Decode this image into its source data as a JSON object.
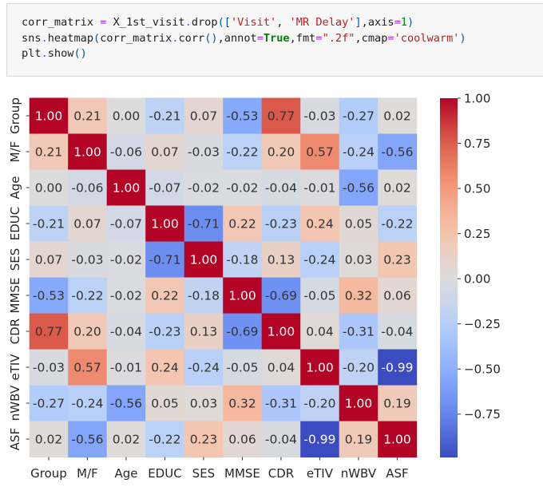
{
  "code_cell": {
    "lines": [
      [
        [
          "t",
          "corr_matrix "
        ],
        [
          "o",
          "="
        ],
        [
          "t",
          " X_1st_visit"
        ],
        [
          "o",
          "."
        ],
        [
          "t",
          "drop"
        ],
        [
          "p",
          "(["
        ],
        [
          "s",
          "'Visit'"
        ],
        [
          "t",
          ", "
        ],
        [
          "s",
          "'MR Delay'"
        ],
        [
          "p",
          "]"
        ],
        [
          "t",
          ",axis"
        ],
        [
          "o",
          "="
        ],
        [
          "n",
          "1"
        ],
        [
          "p",
          ")"
        ]
      ],
      [
        [
          "t",
          "sns"
        ],
        [
          "o",
          "."
        ],
        [
          "t",
          "heatmap"
        ],
        [
          "p",
          "("
        ],
        [
          "t",
          "corr_matrix"
        ],
        [
          "o",
          "."
        ],
        [
          "t",
          "corr"
        ],
        [
          "p",
          "()"
        ],
        [
          "t",
          ",annot"
        ],
        [
          "o",
          "="
        ],
        [
          "k",
          "True"
        ],
        [
          "t",
          ",fmt"
        ],
        [
          "o",
          "="
        ],
        [
          "s",
          "\".2f\""
        ],
        [
          "t",
          ",cmap"
        ],
        [
          "o",
          "="
        ],
        [
          "s",
          "'coolwarm'"
        ],
        [
          "p",
          ")"
        ]
      ],
      [
        [
          "t",
          "plt"
        ],
        [
          "o",
          "."
        ],
        [
          "t",
          "show"
        ],
        [
          "p",
          "()"
        ]
      ]
    ]
  },
  "chart_data": {
    "type": "heatmap",
    "colormap": "coolwarm",
    "vmin": -0.99,
    "vmax": 1.0,
    "labels": [
      "Group",
      "M/F",
      "Age",
      "EDUC",
      "SES",
      "MMSE",
      "CDR",
      "eTIV",
      "nWBV",
      "ASF"
    ],
    "values": [
      [
        1.0,
        0.21,
        0.0,
        -0.21,
        0.07,
        -0.53,
        0.77,
        -0.03,
        -0.27,
        0.02
      ],
      [
        0.21,
        1.0,
        -0.06,
        0.07,
        -0.03,
        -0.22,
        0.2,
        0.57,
        -0.24,
        -0.56
      ],
      [
        0.0,
        -0.06,
        1.0,
        -0.07,
        -0.02,
        -0.02,
        -0.04,
        -0.01,
        -0.56,
        0.02
      ],
      [
        -0.21,
        0.07,
        -0.07,
        1.0,
        -0.71,
        0.22,
        -0.23,
        0.24,
        0.05,
        -0.22
      ],
      [
        0.07,
        -0.03,
        -0.02,
        -0.71,
        1.0,
        -0.18,
        0.13,
        -0.24,
        0.03,
        0.23
      ],
      [
        -0.53,
        -0.22,
        -0.02,
        0.22,
        -0.18,
        1.0,
        -0.69,
        -0.05,
        0.32,
        0.06
      ],
      [
        0.77,
        0.2,
        -0.04,
        -0.23,
        0.13,
        -0.69,
        1.0,
        0.04,
        -0.31,
        -0.04
      ],
      [
        -0.03,
        0.57,
        -0.01,
        0.24,
        -0.24,
        -0.05,
        0.04,
        1.0,
        -0.2,
        -0.99
      ],
      [
        -0.27,
        -0.24,
        -0.56,
        0.05,
        0.03,
        0.32,
        -0.31,
        -0.2,
        1.0,
        0.19
      ],
      [
        0.02,
        -0.56,
        0.02,
        -0.22,
        0.23,
        0.06,
        -0.04,
        -0.99,
        0.19,
        1.0
      ]
    ],
    "annotation_format": ".2f",
    "colorbar_ticks": [
      1.0,
      0.75,
      0.5,
      0.25,
      0.0,
      -0.25,
      -0.5,
      -0.75
    ],
    "colorbar_tick_labels": [
      "1.00",
      "0.75",
      "0.50",
      "0.25",
      "0.00",
      "−0.25",
      "−0.50",
      "−0.75"
    ]
  }
}
